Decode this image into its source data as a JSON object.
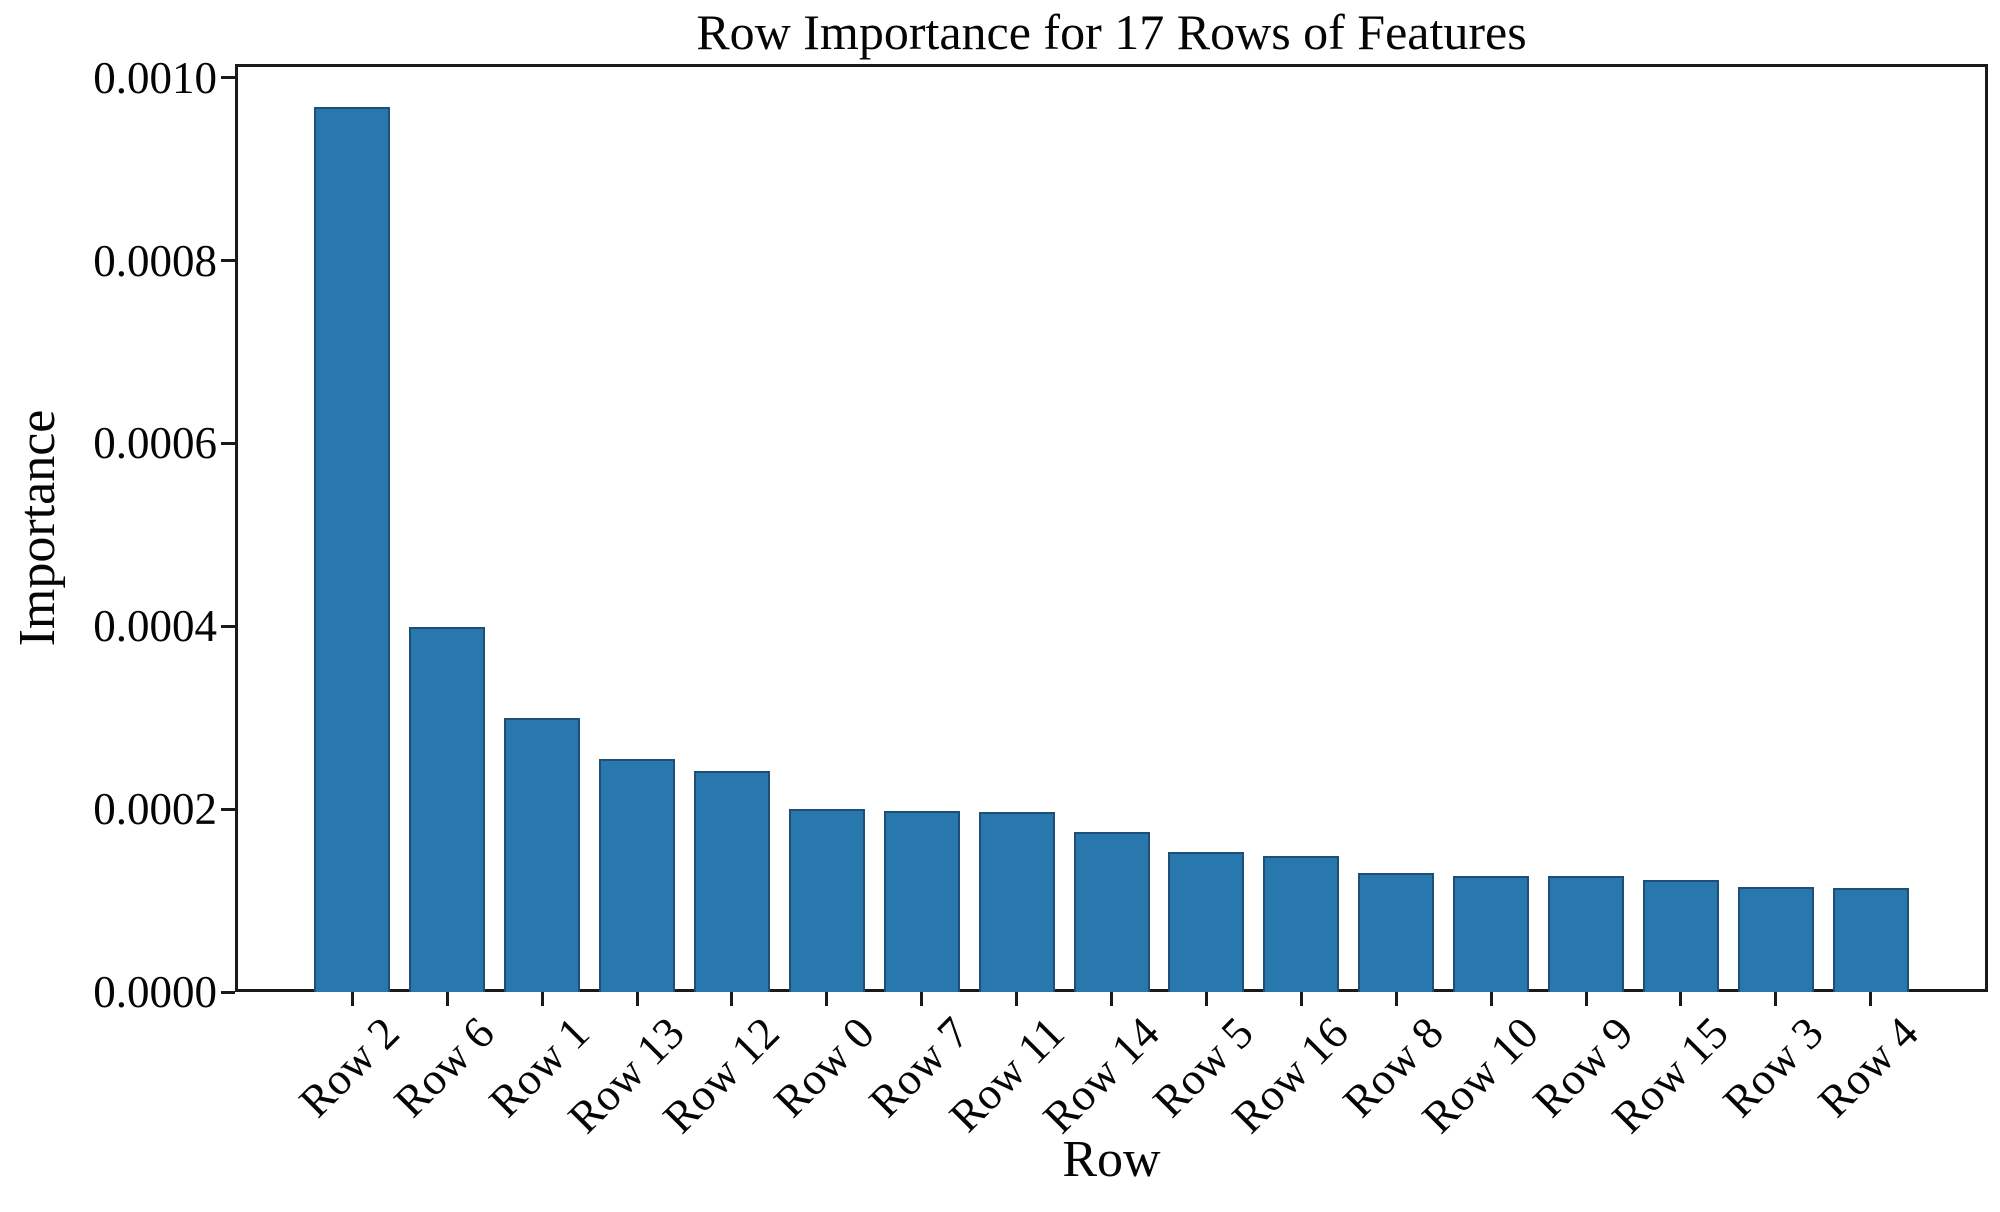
{
  "chart_data": {
    "type": "bar",
    "title": "Row Importance for 17 Rows of Features",
    "xlabel": "Row",
    "ylabel": "Importance",
    "categories": [
      "Row 2",
      "Row 6",
      "Row 1",
      "Row 13",
      "Row 12",
      "Row 0",
      "Row 7",
      "Row 11",
      "Row 14",
      "Row 5",
      "Row 16",
      "Row 8",
      "Row 10",
      "Row 9",
      "Row 15",
      "Row 3",
      "Row 4"
    ],
    "values": [
      0.000968,
      0.000399,
      0.0003,
      0.000255,
      0.000242,
      0.0002,
      0.000198,
      0.000197,
      0.000175,
      0.000153,
      0.000149,
      0.00013,
      0.000127,
      0.000127,
      0.000123,
      0.000115,
      0.000114
    ],
    "ylim": [
      0,
      0.001015
    ],
    "yticks": [
      0.0,
      0.0002,
      0.0004,
      0.0006,
      0.0008,
      0.001
    ],
    "ytick_labels": [
      "0.0000",
      "0.0002",
      "0.0004",
      "0.0006",
      "0.0008",
      "0.0010"
    ],
    "grid": false,
    "legend": null,
    "bar_color": "#2878ae",
    "bar_edge_color": "#1d4f77",
    "axis_color": "#1a1a1a",
    "background_color": "#ffffff"
  }
}
